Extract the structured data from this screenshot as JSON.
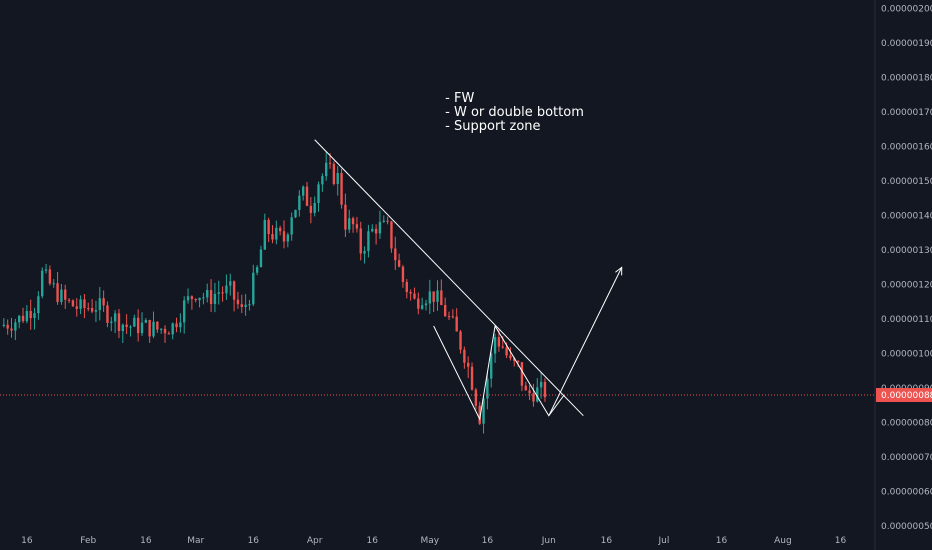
{
  "colors": {
    "background": "#131722",
    "up": "#26a69a",
    "down": "#ef5350",
    "axis_text": "#b2b5be",
    "axis_line": "#2a2e39",
    "drawing": "#ffffff",
    "price_line": "#ef5350"
  },
  "chart_data": {
    "type": "candlestick",
    "title": "",
    "xlabel": "",
    "ylabel": "",
    "ylim": [
      4.8e-07,
      2.025e-06
    ],
    "y_ticks": [
      "0.00000050",
      "0.00000060",
      "0.00000070",
      "0.00000080",
      "0.00000090",
      "0.00000100",
      "0.00000110",
      "0.00000120",
      "0.00000130",
      "0.00000140",
      "0.00000150",
      "0.00000160",
      "0.00000170",
      "0.00000180",
      "0.00000190",
      "0.00000200"
    ],
    "x_range": [
      "2021-01-09",
      "2021-08-25"
    ],
    "x_ticks": [
      {
        "date": "2021-01-16",
        "label": "16"
      },
      {
        "date": "2021-02-01",
        "label": "Feb"
      },
      {
        "date": "2021-02-16",
        "label": "16"
      },
      {
        "date": "2021-03-01",
        "label": "Mar"
      },
      {
        "date": "2021-03-16",
        "label": "16"
      },
      {
        "date": "2021-04-01",
        "label": "Apr"
      },
      {
        "date": "2021-04-16",
        "label": "16"
      },
      {
        "date": "2021-05-01",
        "label": "May"
      },
      {
        "date": "2021-05-16",
        "label": "16"
      },
      {
        "date": "2021-06-01",
        "label": "Jun"
      },
      {
        "date": "2021-06-16",
        "label": "16"
      },
      {
        "date": "2021-07-01",
        "label": "Jul"
      },
      {
        "date": "2021-07-16",
        "label": "16"
      },
      {
        "date": "2021-08-01",
        "label": "Aug"
      },
      {
        "date": "2021-08-16",
        "label": "16"
      }
    ],
    "current_price": {
      "value": 8.8e-07,
      "label": "0.00000088"
    },
    "close_path": [
      [
        "2021-01-09",
        1.08
      ],
      [
        "2021-01-14",
        1.1
      ],
      [
        "2021-01-18",
        1.14
      ],
      [
        "2021-01-20",
        1.23
      ],
      [
        "2021-01-22",
        1.2
      ],
      [
        "2021-01-26",
        1.15
      ],
      [
        "2021-01-30",
        1.13
      ],
      [
        "2021-02-03",
        1.14
      ],
      [
        "2021-02-07",
        1.11
      ],
      [
        "2021-02-11",
        1.08
      ],
      [
        "2021-02-15",
        1.08
      ],
      [
        "2021-02-19",
        1.07
      ],
      [
        "2021-02-23",
        1.08
      ],
      [
        "2021-02-26",
        1.14
      ],
      [
        "2021-03-01",
        1.18
      ],
      [
        "2021-03-04",
        1.16
      ],
      [
        "2021-03-07",
        1.18
      ],
      [
        "2021-03-10",
        1.18
      ],
      [
        "2021-03-13",
        1.12
      ],
      [
        "2021-03-15",
        1.17
      ],
      [
        "2021-03-17",
        1.24
      ],
      [
        "2021-03-19",
        1.36
      ],
      [
        "2021-03-22",
        1.34
      ],
      [
        "2021-03-24",
        1.33
      ],
      [
        "2021-03-26",
        1.41
      ],
      [
        "2021-03-29",
        1.46
      ],
      [
        "2021-03-31",
        1.43
      ],
      [
        "2021-04-02",
        1.5
      ],
      [
        "2021-04-04",
        1.53
      ],
      [
        "2021-04-07",
        1.51
      ],
      [
        "2021-04-09",
        1.38
      ],
      [
        "2021-04-11",
        1.37
      ],
      [
        "2021-04-13",
        1.3
      ],
      [
        "2021-04-15",
        1.34
      ],
      [
        "2021-04-17",
        1.37
      ],
      [
        "2021-04-20",
        1.36
      ],
      [
        "2021-04-22",
        1.28
      ],
      [
        "2021-04-24",
        1.21
      ],
      [
        "2021-04-27",
        1.15
      ],
      [
        "2021-04-29",
        1.17
      ],
      [
        "2021-05-02",
        1.17
      ],
      [
        "2021-05-05",
        1.12
      ],
      [
        "2021-05-07",
        1.08
      ],
      [
        "2021-05-10",
        1.0
      ],
      [
        "2021-05-12",
        0.92
      ],
      [
        "2021-05-14",
        0.82
      ],
      [
        "2021-05-16",
        0.93
      ],
      [
        "2021-05-18",
        1.05
      ],
      [
        "2021-05-20",
        1.02
      ],
      [
        "2021-05-22",
        0.97
      ],
      [
        "2021-05-24",
        0.96
      ],
      [
        "2021-05-26",
        0.88
      ],
      [
        "2021-05-28",
        0.89
      ],
      [
        "2021-05-31",
        0.89
      ]
    ],
    "drawings": {
      "trendlines": [
        {
          "from": [
            "2021-04-01",
            1.62e-06
          ],
          "to": [
            "2021-06-10",
            8.2e-07
          ]
        }
      ],
      "pattern_w": [
        [
          "2021-05-02",
          1.08e-06
        ],
        [
          "2021-05-14",
          8.1e-07
        ],
        [
          "2021-05-18",
          1.08e-06
        ],
        [
          "2021-06-01",
          8.2e-07
        ],
        [
          "2021-06-05",
          8.8e-07
        ]
      ],
      "arrow": {
        "from": [
          "2021-06-01",
          8.2e-07
        ],
        "to": [
          "2021-06-20",
          1.25e-06
        ]
      }
    },
    "annotation": {
      "date": "2021-05-05",
      "value": 1.73e-06,
      "lines": [
        "- FW",
        "- W or double bottom",
        "- Support zone"
      ]
    }
  }
}
